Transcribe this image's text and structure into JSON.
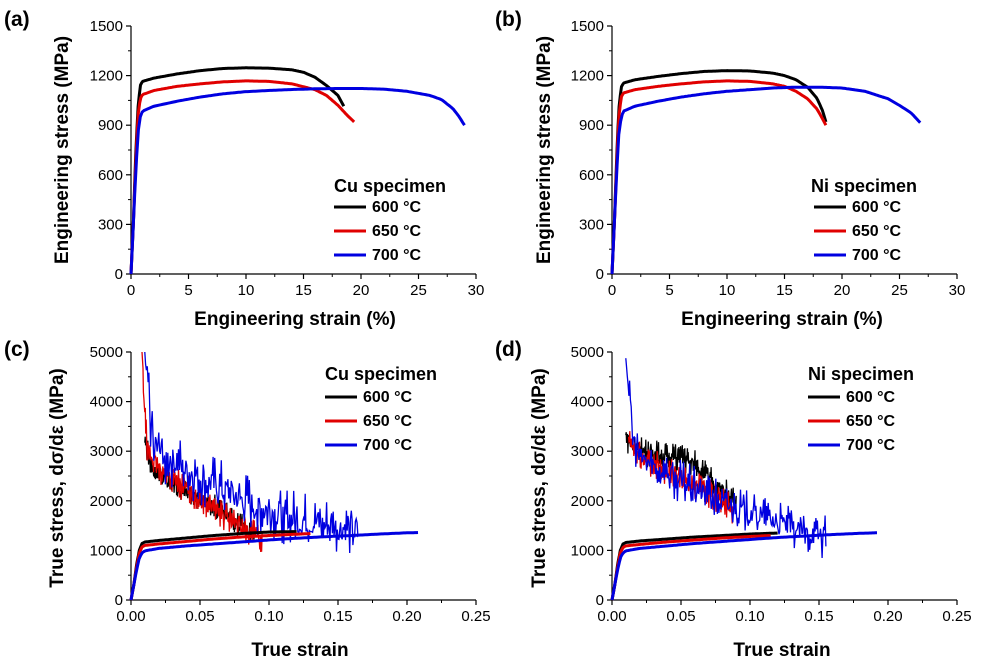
{
  "chart_data": [
    {
      "panel": "(a)",
      "type": "line",
      "xlabel": "Engineering strain (%)",
      "ylabel": "Engineering stress (MPa)",
      "xlim": [
        0,
        30
      ],
      "ylim": [
        0,
        1500
      ],
      "xticks": [
        "0",
        "5",
        "10",
        "15",
        "20",
        "25",
        "30"
      ],
      "yticks": [
        "0",
        "300",
        "600",
        "900",
        "1200",
        "1500"
      ],
      "legend_title": "Cu specimen",
      "legend_position": "lower-right",
      "series": [
        {
          "name": "600 °C",
          "color": "#000000",
          "x": [
            0,
            0.2,
            0.4,
            0.6,
            0.8,
            1.0,
            2,
            4,
            6,
            8,
            10,
            12,
            14,
            15,
            16,
            17,
            18,
            18.5
          ],
          "y": [
            0,
            300,
            700,
            1000,
            1140,
            1165,
            1185,
            1210,
            1230,
            1243,
            1247,
            1245,
            1235,
            1220,
            1190,
            1140,
            1080,
            1015
          ]
        },
        {
          "name": "650 °C",
          "color": "#e00000",
          "x": [
            0,
            0.2,
            0.4,
            0.6,
            0.8,
            1.0,
            2,
            4,
            6,
            8,
            10,
            12,
            14,
            16,
            17,
            18,
            18.8,
            19.4
          ],
          "y": [
            0,
            300,
            650,
            950,
            1060,
            1085,
            1110,
            1135,
            1150,
            1162,
            1168,
            1165,
            1150,
            1115,
            1080,
            1020,
            960,
            920
          ]
        },
        {
          "name": "700 °C",
          "color": "#0000e0",
          "x": [
            0,
            0.2,
            0.4,
            0.6,
            0.8,
            1.0,
            2,
            4,
            6,
            8,
            10,
            12,
            14,
            16,
            18,
            20,
            22,
            24,
            26,
            27,
            28,
            28.5,
            29
          ],
          "y": [
            0,
            300,
            600,
            850,
            950,
            985,
            1015,
            1045,
            1070,
            1090,
            1103,
            1110,
            1116,
            1120,
            1122,
            1122,
            1118,
            1105,
            1080,
            1055,
            1000,
            955,
            900
          ]
        }
      ]
    },
    {
      "panel": "(b)",
      "type": "line",
      "xlabel": "Engineering strain (%)",
      "ylabel": "Engineering stress (MPa)",
      "xlim": [
        0,
        30
      ],
      "ylim": [
        0,
        1500
      ],
      "xticks": [
        "0",
        "5",
        "10",
        "15",
        "20",
        "25",
        "30"
      ],
      "yticks": [
        "0",
        "300",
        "600",
        "900",
        "1200",
        "1500"
      ],
      "legend_title": "Ni specimen",
      "legend_position": "lower-right",
      "series": [
        {
          "name": "600 °C",
          "color": "#000000",
          "x": [
            0,
            0.2,
            0.4,
            0.6,
            0.8,
            1.0,
            2,
            4,
            6,
            8,
            10,
            12,
            14,
            15,
            16,
            17,
            17.8,
            18.3,
            18.6
          ],
          "y": [
            0,
            300,
            700,
            1000,
            1130,
            1155,
            1175,
            1195,
            1212,
            1225,
            1230,
            1228,
            1215,
            1200,
            1175,
            1130,
            1065,
            990,
            920
          ]
        },
        {
          "name": "650 °C",
          "color": "#e00000",
          "x": [
            0,
            0.2,
            0.4,
            0.6,
            0.8,
            1.0,
            2,
            4,
            6,
            8,
            10,
            12,
            14,
            15,
            16,
            17,
            17.8,
            18.3,
            18.6
          ],
          "y": [
            0,
            300,
            650,
            950,
            1070,
            1095,
            1115,
            1135,
            1150,
            1162,
            1168,
            1165,
            1150,
            1135,
            1105,
            1060,
            1000,
            940,
            900
          ]
        },
        {
          "name": "700 °C",
          "color": "#0000e0",
          "x": [
            0,
            0.2,
            0.4,
            0.6,
            0.8,
            1.0,
            2,
            4,
            6,
            8,
            10,
            12,
            14,
            16,
            18,
            20,
            22,
            24,
            25,
            26,
            26.8
          ],
          "y": [
            0,
            300,
            600,
            850,
            950,
            985,
            1015,
            1045,
            1070,
            1090,
            1105,
            1115,
            1125,
            1130,
            1130,
            1125,
            1105,
            1060,
            1020,
            975,
            915
          ]
        }
      ]
    },
    {
      "panel": "(c)",
      "type": "line",
      "xlabel": "True strain",
      "ylabel": "True stress, dσ/dε (MPa)",
      "xlim": [
        0,
        0.25
      ],
      "ylim": [
        0,
        5000
      ],
      "xticks": [
        "0.00",
        "0.05",
        "0.10",
        "0.15",
        "0.20",
        "0.25"
      ],
      "yticks": [
        "0",
        "1000",
        "2000",
        "3000",
        "4000",
        "5000"
      ],
      "legend_title": "Cu specimen",
      "legend_position": "top-right",
      "series": [
        {
          "name": "600 °C",
          "color": "#000000",
          "true_stress": {
            "x": [
              0,
              0.002,
              0.004,
              0.006,
              0.008,
              0.01,
              0.02,
              0.04,
              0.06,
              0.08,
              0.1,
              0.12
            ],
            "y": [
              0,
              300,
              700,
              1000,
              1140,
              1170,
              1200,
              1250,
              1300,
              1340,
              1370,
              1380
            ]
          },
          "hardening_rate": {
            "x": [
              0.01,
              0.015,
              0.02,
              0.03,
              0.04,
              0.05,
              0.06,
              0.07,
              0.08,
              0.085,
              0.09
            ],
            "y": [
              3200,
              2700,
              2500,
              2350,
              2200,
              2050,
              1900,
              1700,
              1500,
              1400,
              1300
            ],
            "noise": 250
          }
        },
        {
          "name": "650 °C",
          "color": "#e00000",
          "true_stress": {
            "x": [
              0,
              0.002,
              0.004,
              0.006,
              0.008,
              0.01,
              0.02,
              0.04,
              0.06,
              0.08,
              0.1,
              0.13
            ],
            "y": [
              0,
              300,
              650,
              950,
              1070,
              1100,
              1130,
              1180,
              1230,
              1270,
              1300,
              1340
            ]
          },
          "hardening_rate": {
            "x": [
              0.008,
              0.01,
              0.012,
              0.02,
              0.03,
              0.04,
              0.05,
              0.06,
              0.07,
              0.08,
              0.09,
              0.095
            ],
            "y": [
              5000,
              3700,
              3000,
              2650,
              2450,
              2250,
              2050,
              1850,
              1650,
              1450,
              1300,
              1250
            ],
            "noise": 300
          }
        },
        {
          "name": "700 °C",
          "color": "#0000e0",
          "true_stress": {
            "x": [
              0,
              0.002,
              0.004,
              0.006,
              0.008,
              0.01,
              0.02,
              0.04,
              0.06,
              0.08,
              0.1,
              0.12,
              0.14,
              0.16,
              0.18,
              0.2,
              0.208
            ],
            "y": [
              0,
              300,
              600,
              850,
              950,
              990,
              1040,
              1090,
              1130,
              1170,
              1210,
              1245,
              1275,
              1300,
              1330,
              1355,
              1360
            ]
          },
          "hardening_rate": {
            "x": [
              0.01,
              0.015,
              0.02,
              0.03,
              0.04,
              0.05,
              0.06,
              0.07,
              0.08,
              0.09,
              0.1,
              0.11,
              0.12,
              0.13,
              0.14,
              0.15,
              0.16,
              0.165
            ],
            "y": [
              5000,
              3400,
              3000,
              2800,
              2600,
              2450,
              2300,
              2150,
              2000,
              1900,
              1800,
              1700,
              1600,
              1550,
              1500,
              1450,
              1400,
              1350
            ],
            "noise": 600
          }
        }
      ]
    },
    {
      "panel": "(d)",
      "type": "line",
      "xlabel": "True strain",
      "ylabel": "True stress, dσ/dε (MPa)",
      "xlim": [
        0,
        0.25
      ],
      "ylim": [
        0,
        5000
      ],
      "xticks": [
        "0.00",
        "0.05",
        "0.10",
        "0.15",
        "0.20",
        "0.25"
      ],
      "yticks": [
        "0",
        "1000",
        "2000",
        "3000",
        "4000",
        "5000"
      ],
      "legend_title": "Ni specimen",
      "legend_position": "top-right",
      "series": [
        {
          "name": "600 °C",
          "color": "#000000",
          "true_stress": {
            "x": [
              0,
              0.002,
              0.004,
              0.006,
              0.008,
              0.01,
              0.02,
              0.04,
              0.06,
              0.08,
              0.1,
              0.12
            ],
            "y": [
              0,
              300,
              700,
              1000,
              1130,
              1160,
              1190,
              1230,
              1270,
              1300,
              1330,
              1350
            ]
          },
          "hardening_rate": {
            "x": [
              0.01,
              0.015,
              0.02,
              0.03,
              0.04,
              0.05,
              0.06,
              0.07,
              0.08,
              0.09
            ],
            "y": [
              3300,
              3100,
              3000,
              2950,
              2900,
              2850,
              2750,
              2450,
              2200,
              2000
            ],
            "noise": 300
          }
        },
        {
          "name": "650 °C",
          "color": "#e00000",
          "true_stress": {
            "x": [
              0,
              0.002,
              0.004,
              0.006,
              0.008,
              0.01,
              0.02,
              0.04,
              0.06,
              0.08,
              0.1,
              0.115
            ],
            "y": [
              0,
              300,
              650,
              950,
              1060,
              1090,
              1120,
              1170,
              1210,
              1250,
              1280,
              1300
            ]
          },
          "hardening_rate": {
            "x": [
              0.012,
              0.02,
              0.03,
              0.04,
              0.05,
              0.06,
              0.07,
              0.08,
              0.085,
              0.088
            ],
            "y": [
              3200,
              2900,
              2750,
              2600,
              2450,
              2300,
              2150,
              2000,
              1900,
              1800
            ],
            "noise": 300
          }
        },
        {
          "name": "700 °C",
          "color": "#0000e0",
          "true_stress": {
            "x": [
              0,
              0.002,
              0.004,
              0.006,
              0.008,
              0.01,
              0.02,
              0.04,
              0.06,
              0.08,
              0.1,
              0.12,
              0.14,
              0.16,
              0.18,
              0.192
            ],
            "y": [
              0,
              300,
              600,
              850,
              950,
              990,
              1040,
              1090,
              1140,
              1180,
              1220,
              1260,
              1290,
              1320,
              1345,
              1355
            ]
          },
          "hardening_rate": {
            "x": [
              0.01,
              0.015,
              0.02,
              0.03,
              0.04,
              0.05,
              0.06,
              0.07,
              0.08,
              0.09,
              0.1,
              0.11,
              0.12,
              0.13,
              0.14,
              0.15,
              0.155
            ],
            "y": [
              5000,
              3300,
              2900,
              2700,
              2550,
              2400,
              2250,
              2100,
              1950,
              1850,
              1750,
              1650,
              1550,
              1450,
              1350,
              1300,
              1250
            ],
            "noise": 450
          }
        }
      ]
    }
  ]
}
